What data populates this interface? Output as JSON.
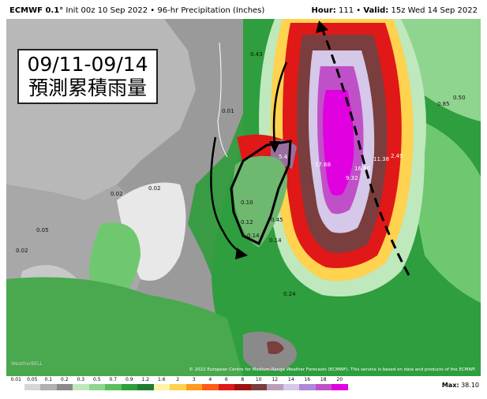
{
  "header": {
    "model": "ECMWF 0.1°",
    "init": "Init 00z 10 Sep 2022",
    "product": "96-hr Precipitation (Inches)",
    "hour_label": "Hour:",
    "hour": "111",
    "valid_label": "Valid:",
    "valid": "15z Wed 14 Sep 2022"
  },
  "overlay": {
    "dates": "09/11-09/14",
    "caption": "預測累積雨量"
  },
  "map_values": [
    "0.43",
    "0.01",
    "0.02",
    "0.05",
    "0.02",
    "0.02",
    "5.4",
    "0.85",
    "0.50",
    "17.68",
    "16.60",
    "11.38",
    "2.49",
    "9.32",
    "0.10",
    "0.12",
    "0.14",
    "0.24",
    "0.14",
    "0.45"
  ],
  "credit": "© 2022 European Centre for Medium-Range Weather Forecasts (ECMWF). This service is based on data and products of the ECMWF.",
  "watermark": "WeatherBELL",
  "legend": {
    "ticks": [
      "0.01",
      "0.05",
      "0.1",
      "0.2",
      "0.3",
      "0.5",
      "0.7",
      "0.9",
      "1.2",
      "1.6",
      "2",
      "3",
      "4",
      "6",
      "8",
      "10",
      "12",
      "14",
      "16",
      "18",
      "20"
    ],
    "colors": [
      "#ffffff",
      "#d6d6d6",
      "#b0b0b0",
      "#8a8a8a",
      "#bfe8bd",
      "#8fd48f",
      "#5cbf5c",
      "#2e9e3e",
      "#1e7d2e",
      "#fff3a8",
      "#ffd24f",
      "#ff9b1f",
      "#ff5a1a",
      "#e01818",
      "#a01010",
      "#7a3e3e",
      "#b9a0b8",
      "#d5c8e8",
      "#b088d8",
      "#c050c8",
      "#e000e0"
    ],
    "max_label": "Max:",
    "max_value": "38.10"
  }
}
